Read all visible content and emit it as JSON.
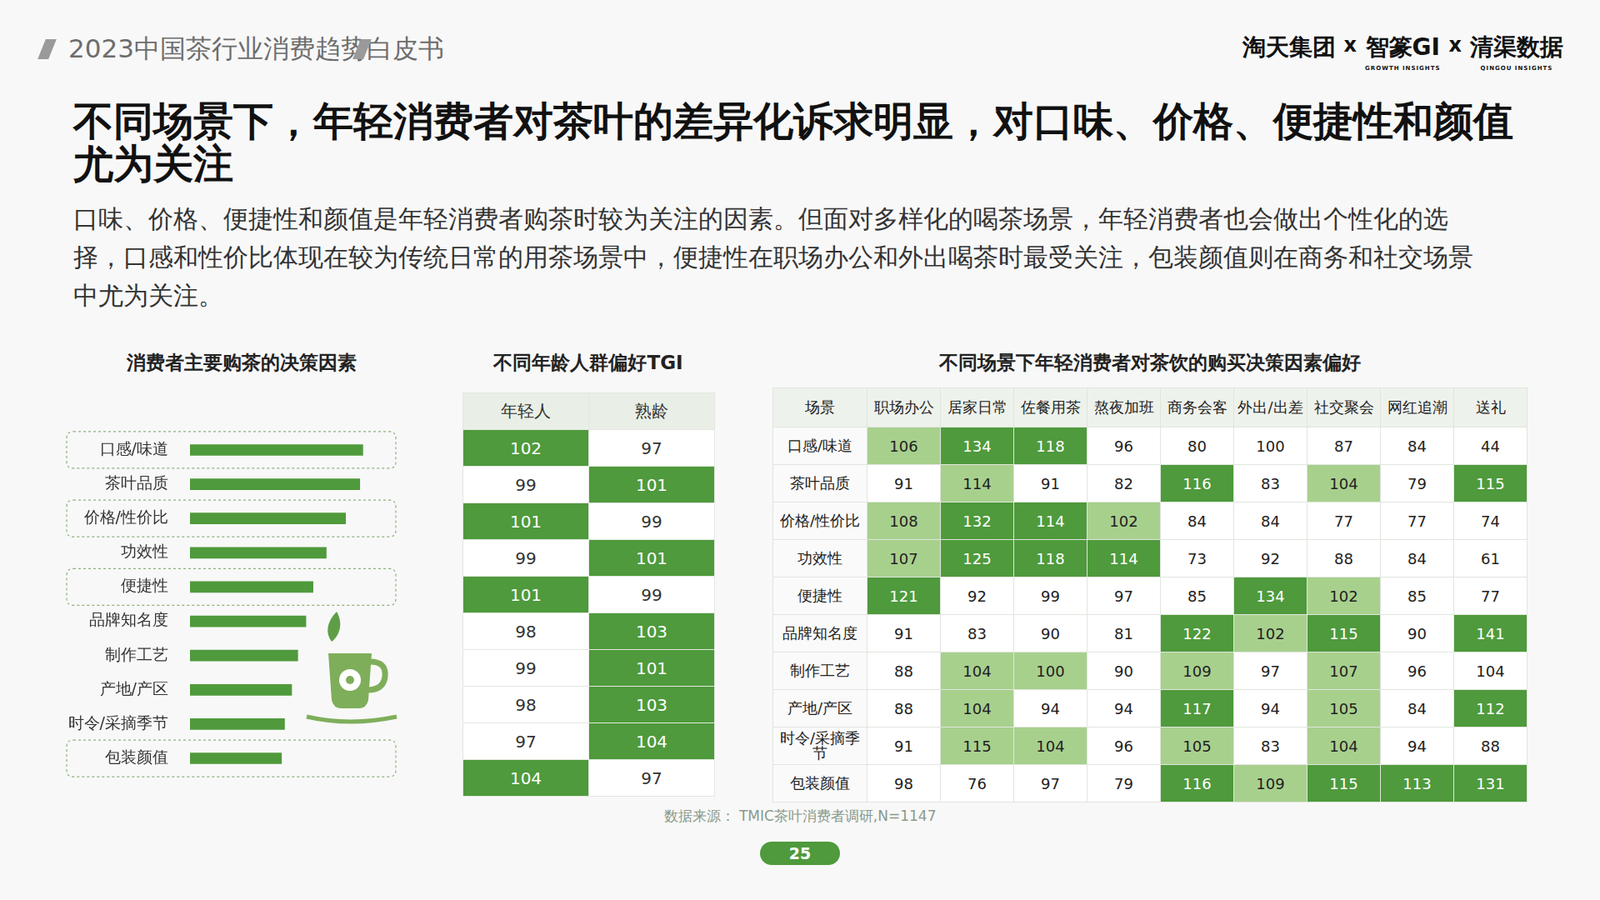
{
  "header": {
    "title": "2023中国茶行业消费趋势白皮书",
    "logos": [
      "淘天集团",
      "智篆GI",
      "清渠数据"
    ],
    "separator": "x",
    "logo_subtitles": [
      "GROWTH INSIGHTS",
      "QINGOU INSIGHTS"
    ]
  },
  "title": "不同场景下，年轻消费者对茶叶的差异化诉求明显，对口味、价格、便捷性和颜值尤为关注",
  "body": "口味、价格、便捷性和颜值是年轻消费者购茶时较为关注的因素。但面对多样化的喝茶场景，年轻消费者也会做出个性化的选择，口感和性价比体现在较为传统日常的用茶场景中，便捷性在职场办公和外出喝茶时最受关注，包装颜值则在商务和社交场景中尤为关注。",
  "chart_data": {
    "type": "bar",
    "title": "消费者主要购茶的决策因素",
    "orientation": "horizontal",
    "categories": [
      "口感/味道",
      "茶叶品质",
      "价格/性价比",
      "功效性",
      "便捷性",
      "品牌知名度",
      "制作工艺",
      "产地/产区",
      "时令/采摘季节",
      "包装颜值"
    ],
    "values": [
      170,
      167,
      153,
      134,
      121,
      114,
      106,
      100,
      93,
      90
    ],
    "color": "#4f9a3c",
    "xlim": [
      0,
      200
    ],
    "grid": false,
    "tick_labels": "y"
  },
  "tgi_table": {
    "title": "不同年龄人群偏好TGI",
    "columns": [
      "年轻人",
      "熟龄"
    ],
    "rows": [
      [
        102,
        97
      ],
      [
        99,
        101
      ],
      [
        101,
        99
      ],
      [
        99,
        101
      ],
      [
        101,
        99
      ],
      [
        98,
        103
      ],
      [
        99,
        101
      ],
      [
        98,
        103
      ],
      [
        97,
        104
      ],
      [
        104,
        97
      ]
    ]
  },
  "scene_table": {
    "title": "不同场景下年轻消费者对茶饮的购买决策因素偏好",
    "corner": "场景",
    "columns": [
      "职场办公",
      "居家日常",
      "佐餐用茶",
      "熬夜加班",
      "商务会客",
      "外出/出差",
      "社交聚会",
      "网红追潮",
      "送礼"
    ],
    "row_labels": [
      "口感/味道",
      "茶叶品质",
      "价格/性价比",
      "功效性",
      "便捷性",
      "品牌知名度",
      "制作工艺",
      "产地/产区",
      "时令/采摘季节",
      "包装颜值"
    ],
    "rows": [
      [
        106,
        134,
        118,
        96,
        80,
        100,
        87,
        84,
        44
      ],
      [
        91,
        114,
        91,
        82,
        116,
        83,
        104,
        79,
        115
      ],
      [
        108,
        132,
        114,
        102,
        84,
        84,
        77,
        77,
        74
      ],
      [
        107,
        125,
        118,
        114,
        73,
        92,
        88,
        84,
        61
      ],
      [
        121,
        92,
        99,
        97,
        85,
        134,
        102,
        85,
        77
      ],
      [
        91,
        83,
        90,
        81,
        122,
        102,
        115,
        90,
        141
      ],
      [
        88,
        104,
        100,
        90,
        109,
        97,
        107,
        96,
        104
      ],
      [
        88,
        104,
        94,
        94,
        117,
        94,
        105,
        84,
        112
      ],
      [
        91,
        115,
        104,
        96,
        105,
        83,
        104,
        94,
        88
      ],
      [
        98,
        76,
        97,
        79,
        116,
        109,
        115,
        113,
        131
      ]
    ],
    "colors": [
      [
        "#a8d08d",
        "#4e9a3c",
        "#4e9a3c",
        "#ffffff",
        "#ffffff",
        "#ffffff",
        "#ffffff",
        "#ffffff",
        "#ffffff"
      ],
      [
        "#ffffff",
        "#a8d08d",
        "#ffffff",
        "#ffffff",
        "#4e9a3c",
        "#ffffff",
        "#a8d08d",
        "#ffffff",
        "#4e9a3c"
      ],
      [
        "#a8d08d",
        "#4e9a3c",
        "#4e9a3c",
        "#a8d08d",
        "#ffffff",
        "#ffffff",
        "#ffffff",
        "#ffffff",
        "#ffffff"
      ],
      [
        "#a8d08d",
        "#4e9a3c",
        "#4e9a3c",
        "#4e9a3c",
        "#ffffff",
        "#ffffff",
        "#ffffff",
        "#ffffff",
        "#ffffff"
      ],
      [
        "#4e9a3c",
        "#ffffff",
        "#ffffff",
        "#ffffff",
        "#ffffff",
        "#4e9a3c",
        "#a8d08d",
        "#ffffff",
        "#ffffff"
      ],
      [
        "#ffffff",
        "#ffffff",
        "#ffffff",
        "#ffffff",
        "#4e9a3c",
        "#a8d08d",
        "#4e9a3c",
        "#ffffff",
        "#4e9a3c"
      ],
      [
        "#ffffff",
        "#a8d08d",
        "#a8d08d",
        "#ffffff",
        "#a8d08d",
        "#ffffff",
        "#a8d08d",
        "#ffffff",
        "#ffffff"
      ],
      [
        "#ffffff",
        "#a8d08d",
        "#ffffff",
        "#ffffff",
        "#4e9a3c",
        "#ffffff",
        "#a8d08d",
        "#ffffff",
        "#4e9a3c"
      ],
      [
        "#ffffff",
        "#a8d08d",
        "#a8d08d",
        "#ffffff",
        "#a8d08d",
        "#ffffff",
        "#a8d08d",
        "#ffffff",
        "#ffffff"
      ],
      [
        "#ffffff",
        "#ffffff",
        "#ffffff",
        "#ffffff",
        "#4e9a3c",
        "#a8d08d",
        "#4e9a3c",
        "#4e9a3c",
        "#4e9a3c"
      ]
    ]
  },
  "source": "数据来源：  TMIC茶叶消费者调研,N=1147",
  "page": 25
}
